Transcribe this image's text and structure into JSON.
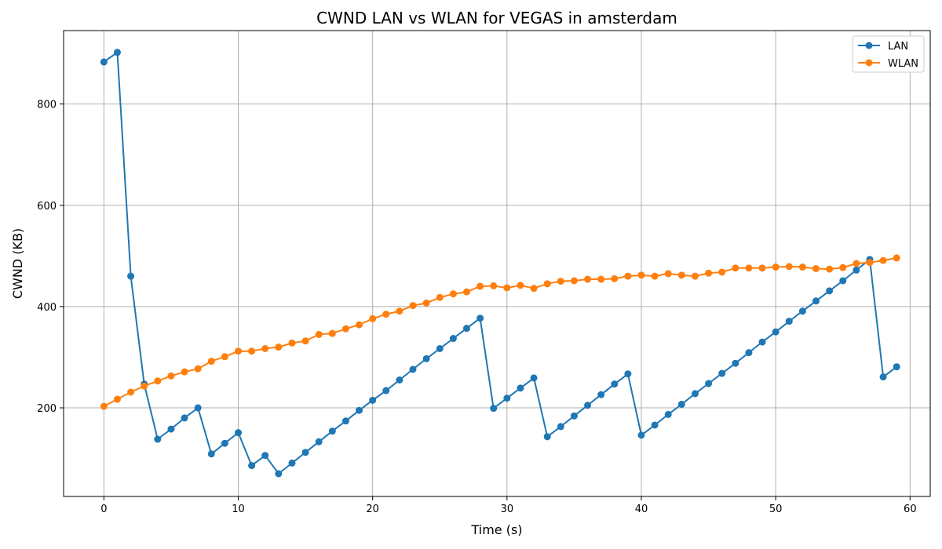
{
  "chart_data": {
    "type": "line",
    "title": "CWND LAN vs WLAN for VEGAS in amsterdam",
    "xlabel": "Time (s)",
    "ylabel": "CWND (KB)",
    "xlim": [
      -3,
      61.5
    ],
    "ylim": [
      25,
      945
    ],
    "xticks": [
      0,
      10,
      20,
      30,
      40,
      50,
      60
    ],
    "yticks": [
      200,
      400,
      600,
      800
    ],
    "grid": true,
    "legend": "top-right",
    "x": [
      0,
      1,
      2,
      3,
      4,
      5,
      6,
      7,
      8,
      9,
      10,
      11,
      12,
      13,
      14,
      15,
      16,
      17,
      18,
      19,
      20,
      21,
      22,
      23,
      24,
      25,
      26,
      27,
      28,
      29,
      30,
      31,
      32,
      33,
      34,
      35,
      36,
      37,
      38,
      39,
      40,
      41,
      42,
      43,
      44,
      45,
      46,
      47,
      48,
      49,
      50,
      51,
      52,
      53,
      54,
      55,
      56,
      57,
      58,
      59
    ],
    "series": [
      {
        "name": "LAN",
        "color": "#1f77b4",
        "values": [
          883,
          902,
          460,
          247,
          138,
          158,
          180,
          200,
          109,
          130,
          151,
          86,
          106,
          70,
          91,
          112,
          133,
          154,
          174,
          195,
          215,
          234,
          255,
          276,
          297,
          317,
          337,
          357,
          377,
          199,
          219,
          239,
          259,
          143,
          163,
          184,
          205,
          226,
          247,
          267,
          146,
          166,
          187,
          207,
          228,
          248,
          268,
          288,
          309,
          330,
          350,
          371,
          391,
          411,
          431,
          451,
          472,
          493,
          261,
          281
        ]
      },
      {
        "name": "WLAN",
        "color": "#ff7f0e",
        "values": [
          203,
          217,
          231,
          243,
          253,
          263,
          271,
          277,
          292,
          301,
          312,
          312,
          317,
          320,
          328,
          332,
          345,
          347,
          356,
          364,
          376,
          385,
          391,
          402,
          407,
          418,
          425,
          429,
          440,
          441,
          437,
          442,
          436,
          445,
          450,
          451,
          454,
          454,
          455,
          460,
          462,
          460,
          465,
          462,
          460,
          466,
          468,
          476,
          476,
          476,
          478,
          479,
          478,
          475,
          474,
          477,
          485,
          487,
          491,
          496
        ]
      }
    ]
  }
}
